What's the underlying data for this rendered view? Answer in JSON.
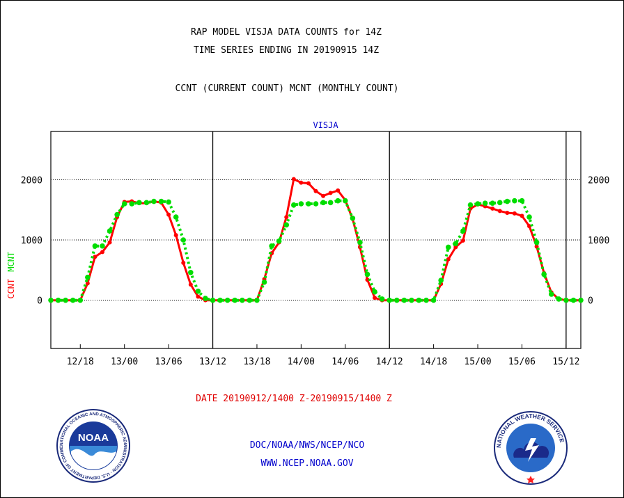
{
  "header": {
    "title_line1": "RAP MODEL VISJA DATA COUNTS for 14Z",
    "title_line2": "TIME SERIES ENDING IN 20190915 14Z",
    "subtitle": "CCNT (CURRENT COUNT) MCNT (MONTHLY COUNT)"
  },
  "footer": {
    "date_range": "DATE 20190912/1400 Z-20190915/1400 Z",
    "org": "DOC/NOAA/NWS/NCEP/NCO",
    "url": "WWW.NCEP.NOAA.GOV",
    "noaa_logo_text": "NOAA",
    "noaa_ring_text": "NATIONAL OCEANIC AND ATMOSPHERIC ADMINISTRATION · U.S. DEPARTMENT OF COMMERCE",
    "nws_ring_text": "NATIONAL WEATHER SERVICE"
  },
  "colors": {
    "ccnt": "#ff0000",
    "mcnt": "#00dd00",
    "title_blue": "#0000cc",
    "frame": "#000000"
  },
  "chart_data": {
    "type": "line",
    "title": "VISJA",
    "ylabel_ccnt": "CCNT",
    "ylabel_mcnt": "MCNT",
    "x_unit": "hours from 20190912/1400 Z",
    "xlim": [
      0,
      72
    ],
    "ylim": [
      -800,
      2800
    ],
    "yticks": [
      0,
      1000,
      2000
    ],
    "grid_y": [
      0,
      1000,
      2000
    ],
    "day_boundaries_x": [
      22,
      46,
      70
    ],
    "xticks": [
      {
        "x": 4,
        "label": "12/18"
      },
      {
        "x": 10,
        "label": "13/00"
      },
      {
        "x": 16,
        "label": "13/06"
      },
      {
        "x": 22,
        "label": "13/12"
      },
      {
        "x": 28,
        "label": "13/18"
      },
      {
        "x": 34,
        "label": "14/00"
      },
      {
        "x": 40,
        "label": "14/06"
      },
      {
        "x": 46,
        "label": "14/12"
      },
      {
        "x": 52,
        "label": "14/18"
      },
      {
        "x": 58,
        "label": "15/00"
      },
      {
        "x": 64,
        "label": "15/06"
      },
      {
        "x": 70,
        "label": "15/12"
      }
    ],
    "series": [
      {
        "name": "CCNT",
        "x": [
          0,
          1,
          2,
          3,
          4,
          5,
          6,
          7,
          8,
          9,
          10,
          11,
          12,
          13,
          14,
          15,
          16,
          17,
          18,
          19,
          20,
          21,
          22,
          23,
          24,
          25,
          26,
          27,
          28,
          29,
          30,
          31,
          32,
          33,
          34,
          35,
          36,
          37,
          38,
          39,
          40,
          41,
          42,
          43,
          44,
          45,
          46,
          47,
          48,
          49,
          50,
          51,
          52,
          53,
          54,
          55,
          56,
          57,
          58,
          59,
          60,
          61,
          62,
          63,
          64,
          65,
          66,
          67,
          68,
          69,
          70,
          71,
          72
        ],
        "y": [
          0,
          0,
          0,
          0,
          0,
          280,
          720,
          800,
          960,
          1380,
          1630,
          1640,
          1610,
          1610,
          1640,
          1620,
          1420,
          1080,
          620,
          260,
          60,
          0,
          0,
          0,
          0,
          0,
          0,
          0,
          0,
          350,
          780,
          960,
          1380,
          2010,
          1950,
          1940,
          1810,
          1730,
          1780,
          1820,
          1660,
          1350,
          880,
          340,
          40,
          0,
          0,
          0,
          0,
          0,
          0,
          0,
          0,
          270,
          680,
          880,
          990,
          1520,
          1590,
          1560,
          1520,
          1480,
          1450,
          1440,
          1400,
          1230,
          890,
          450,
          130,
          20,
          0,
          0,
          0
        ]
      },
      {
        "name": "MCNT",
        "x": [
          0,
          1,
          2,
          3,
          4,
          5,
          6,
          7,
          8,
          9,
          10,
          11,
          12,
          13,
          14,
          15,
          16,
          17,
          18,
          19,
          20,
          21,
          22,
          23,
          24,
          25,
          26,
          27,
          28,
          29,
          30,
          31,
          32,
          33,
          34,
          35,
          36,
          37,
          38,
          39,
          40,
          41,
          42,
          43,
          44,
          45,
          46,
          47,
          48,
          49,
          50,
          51,
          52,
          53,
          54,
          55,
          56,
          57,
          58,
          59,
          60,
          61,
          62,
          63,
          64,
          65,
          66,
          67,
          68,
          69,
          70,
          71,
          72
        ],
        "y": [
          0,
          0,
          0,
          0,
          0,
          380,
          900,
          900,
          1150,
          1420,
          1600,
          1600,
          1620,
          1620,
          1640,
          1640,
          1630,
          1380,
          1000,
          460,
          150,
          30,
          0,
          0,
          0,
          0,
          0,
          0,
          0,
          300,
          900,
          980,
          1250,
          1580,
          1600,
          1600,
          1600,
          1620,
          1620,
          1650,
          1650,
          1360,
          960,
          430,
          140,
          20,
          0,
          0,
          0,
          0,
          0,
          0,
          0,
          330,
          880,
          940,
          1150,
          1580,
          1600,
          1610,
          1610,
          1620,
          1640,
          1650,
          1650,
          1380,
          960,
          430,
          100,
          20,
          0,
          0,
          0
        ]
      }
    ]
  }
}
